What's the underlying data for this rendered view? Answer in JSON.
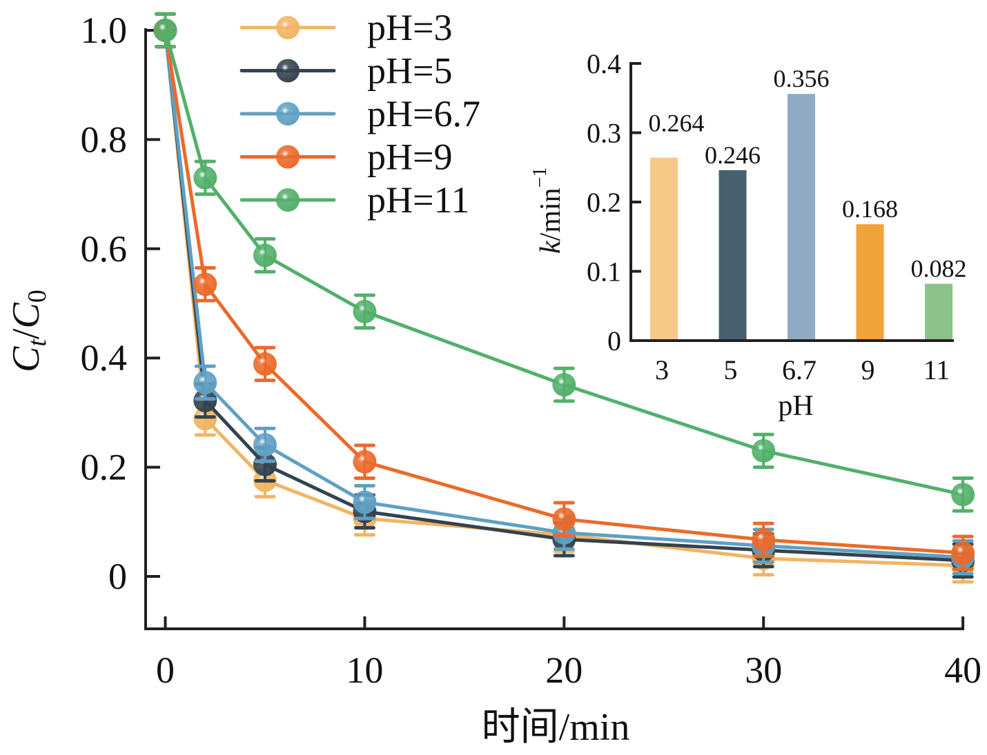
{
  "chart_data": [
    {
      "type": "line",
      "title": "",
      "xlabel": "时间/min",
      "ylabel_parts": {
        "main": "C",
        "sub1": "t",
        "sep": "/",
        "main2": "C",
        "sub2": "0"
      },
      "ylabel": "Ct/C0",
      "x": [
        0,
        2,
        5,
        10,
        20,
        30,
        40
      ],
      "xlim": [
        -1,
        40
      ],
      "ylim": [
        -0.095,
        1.0
      ],
      "xticks": [
        0,
        10,
        20,
        30,
        40
      ],
      "xtick_labels": [
        "0",
        "10",
        "20",
        "30",
        "40"
      ],
      "yticks": [
        0,
        0.2,
        0.4,
        0.6,
        0.8,
        1.0
      ],
      "ytick_labels": [
        "0",
        "0.2",
        "0.4",
        "0.6",
        "0.8",
        "1.0"
      ],
      "legend_position": "top-left",
      "grid": false,
      "error_bar": 0.03,
      "series": [
        {
          "name": "pH=3",
          "color": "#f2b463",
          "values": [
            1.0,
            0.289,
            0.176,
            0.106,
            0.076,
            0.033,
            0.02
          ]
        },
        {
          "name": "pH=5",
          "color": "#33434e",
          "values": [
            1.0,
            0.322,
            0.205,
            0.119,
            0.068,
            0.048,
            0.029
          ]
        },
        {
          "name": "pH=6.7",
          "color": "#5fa0c4",
          "values": [
            1.0,
            0.355,
            0.241,
            0.136,
            0.08,
            0.056,
            0.035
          ]
        },
        {
          "name": "pH=9",
          "color": "#ea6a2a",
          "values": [
            1.0,
            0.535,
            0.389,
            0.21,
            0.105,
            0.067,
            0.043
          ]
        },
        {
          "name": "pH=11",
          "color": "#52b06a",
          "values": [
            1.0,
            0.73,
            0.588,
            0.485,
            0.351,
            0.23,
            0.15
          ]
        }
      ]
    },
    {
      "type": "bar",
      "title": "",
      "xlabel": "pH",
      "ylabel": "k/min−1",
      "ylabel_parts": {
        "italic": "k",
        "rest": "/min",
        "sup": "−1"
      },
      "categories": [
        "3",
        "5",
        "6.7",
        "9",
        "11"
      ],
      "values": [
        0.264,
        0.246,
        0.356,
        0.168,
        0.082
      ],
      "value_labels": [
        "0.264",
        "0.246",
        "0.356",
        "0.168",
        "0.082"
      ],
      "colors": [
        "#f6c987",
        "#46606f",
        "#8fabc4",
        "#f0a23b",
        "#8cc38b"
      ],
      "ylim": [
        0,
        0.4
      ],
      "yticks": [
        0,
        0.1,
        0.2,
        0.3,
        0.4
      ],
      "ytick_labels": [
        "0",
        "0.1",
        "0.2",
        "0.3",
        "0.4"
      ],
      "position": "inset top-right"
    }
  ]
}
